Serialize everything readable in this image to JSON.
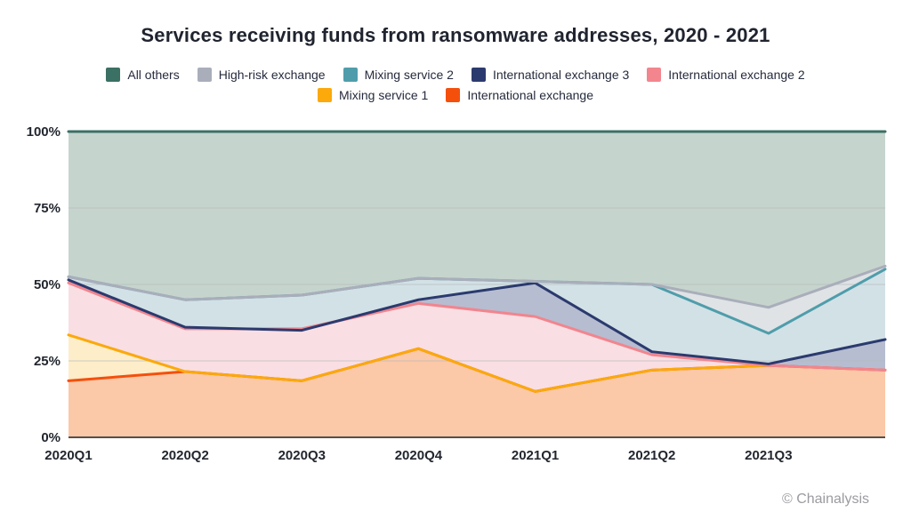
{
  "header": {
    "title": "Services receiving funds from ransomware addresses, 2020 - 2021"
  },
  "footer": {
    "credit": "© Chainalysis"
  },
  "legend": {
    "rows": [
      [
        "all-others",
        "high-risk-exchange",
        "mixing-service-2",
        "international-exchange-3",
        "international-exchange-2"
      ],
      [
        "mixing-service-1",
        "international-exchange"
      ]
    ]
  },
  "chart_data": {
    "type": "area",
    "title": "Services receiving funds from ransomware addresses, 2020 - 2021",
    "x_labels": [
      "2020Q1",
      "2020Q2",
      "2020Q3",
      "2020Q4",
      "2021Q1",
      "2021Q2",
      "2021Q3"
    ],
    "x_count": 8,
    "xlabel": "",
    "ylabel": "",
    "ylim": [
      0,
      100
    ],
    "y_ticks": [
      "0%",
      "25%",
      "50%",
      "75%",
      "100%"
    ],
    "grid": "horizontal",
    "legend_position": "top",
    "grid_color": "#b3b9bb",
    "axis_line_color": "#56514b",
    "series": [
      {
        "key": "all-others",
        "name": "All others",
        "color": "#3B7064",
        "fill": "#c6d4ce",
        "values": [
          100,
          100,
          100,
          100,
          100,
          100,
          100,
          100
        ]
      },
      {
        "key": "high-risk-exchange",
        "name": "High-risk exchange",
        "color": "#A9AEBA",
        "fill": "#dfe3e6",
        "values": [
          52.5,
          45,
          46.5,
          52,
          51,
          50,
          42.5,
          56
        ]
      },
      {
        "key": "mixing-service-2",
        "name": "Mixing service 2",
        "color": "#4F9DAB",
        "fill": "#d2e1e6",
        "values": [
          52.5,
          45,
          46.5,
          52,
          51,
          50,
          34,
          55
        ]
      },
      {
        "key": "international-exchange-3",
        "name": "International exchange 3",
        "color": "#2B3A6E",
        "fill": "#b6bdd0",
        "values": [
          51.5,
          36,
          35,
          45,
          50.5,
          28,
          24,
          32
        ]
      },
      {
        "key": "international-exchange-2",
        "name": "International exchange 2",
        "color": "#F2858E",
        "fill": "#f9dee3",
        "values": [
          50.5,
          35.5,
          35.5,
          43.8,
          39.5,
          27,
          23.5,
          22
        ]
      },
      {
        "key": "mixing-service-1",
        "name": "Mixing service 1",
        "color": "#FBA90B",
        "fill": "#fdedc9",
        "values": [
          33.5,
          21.5,
          18.5,
          29,
          15,
          22,
          23.5,
          null
        ]
      },
      {
        "key": "international-exchange",
        "name": "International exchange",
        "color": "#F4500C",
        "fill": "#fbc8a8",
        "values": [
          18.5,
          21.5,
          18.5,
          29,
          15,
          22,
          23.5,
          22
        ]
      }
    ],
    "line_order": [
      "international-exchange",
      "mixing-service-1",
      "international-exchange-2",
      "international-exchange-3",
      "mixing-service-2",
      "high-risk-exchange",
      "all-others"
    ]
  }
}
